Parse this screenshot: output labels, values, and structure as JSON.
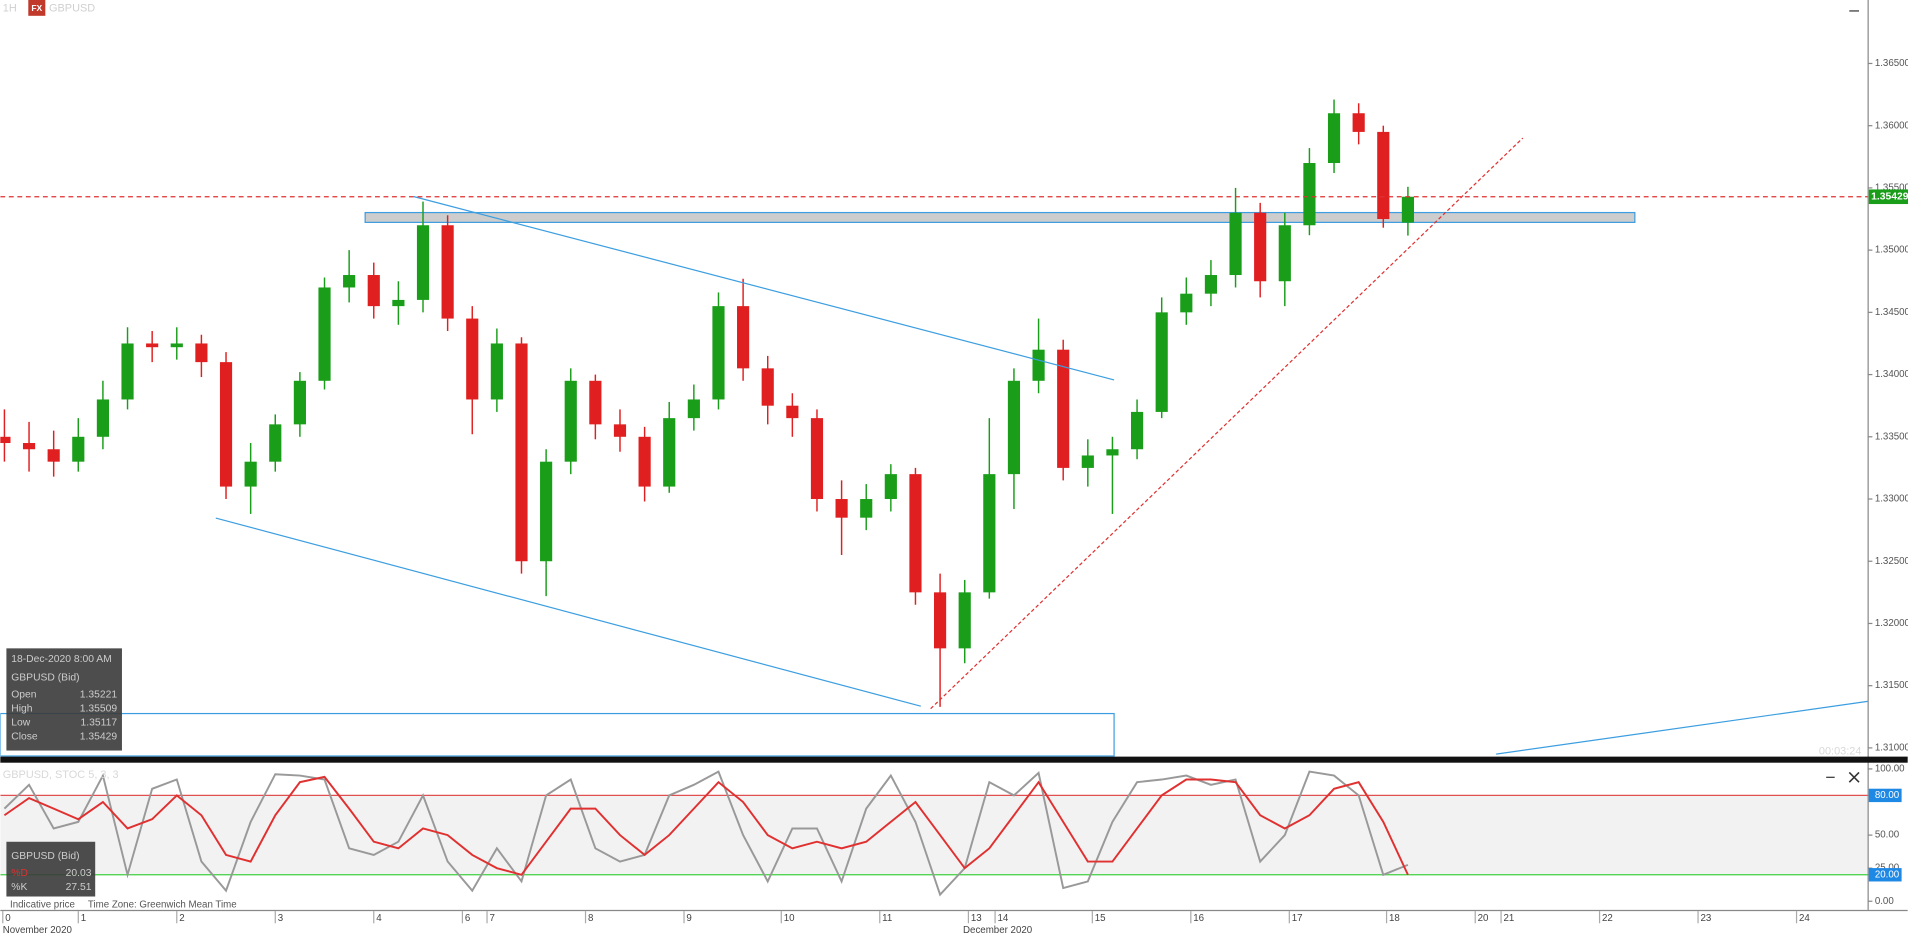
{
  "header": {
    "timeframe": "1H",
    "badge": "FX",
    "symbol": "GBPUSD"
  },
  "chart_data": [
    {
      "type": "candlestick",
      "x": [
        -18,
        -12,
        -6,
        0,
        6,
        12,
        18,
        24,
        30,
        36,
        42,
        48,
        54,
        60,
        66,
        72,
        78,
        84,
        90,
        96,
        102,
        108,
        114,
        120,
        126,
        132,
        138,
        144,
        150,
        156,
        162,
        168,
        174,
        180,
        186,
        192,
        198,
        204,
        210,
        216,
        222,
        228,
        234,
        240,
        246,
        252,
        258,
        264,
        270,
        276,
        282,
        288,
        294,
        300,
        306,
        312,
        318,
        324
      ],
      "open": [
        1.335,
        1.3345,
        1.334,
        1.333,
        1.335,
        1.338,
        1.3425,
        1.3422,
        1.3425,
        1.341,
        1.331,
        1.333,
        1.336,
        1.3395,
        1.347,
        1.348,
        1.3455,
        1.346,
        1.352,
        1.3445,
        1.338,
        1.3425,
        1.325,
        1.333,
        1.3395,
        1.336,
        1.335,
        1.331,
        1.3365,
        1.338,
        1.3455,
        1.3405,
        1.3375,
        1.3365,
        1.33,
        1.3285,
        1.33,
        1.332,
        1.3225,
        1.318,
        1.3225,
        1.332,
        1.3395,
        1.342,
        1.3325,
        1.3335,
        1.334,
        1.337,
        1.345,
        1.3465,
        1.348,
        1.353,
        1.3475,
        1.352,
        1.357,
        1.361,
        1.3595,
        1.35221
      ],
      "high": [
        1.3372,
        1.3362,
        1.3355,
        1.3365,
        1.3395,
        1.3438,
        1.3435,
        1.3438,
        1.3432,
        1.3418,
        1.3345,
        1.3368,
        1.3402,
        1.3478,
        1.35,
        1.349,
        1.3475,
        1.3539,
        1.3528,
        1.3455,
        1.3437,
        1.343,
        1.334,
        1.3405,
        1.34,
        1.3372,
        1.3358,
        1.3378,
        1.3392,
        1.3466,
        1.3477,
        1.3415,
        1.3385,
        1.3372,
        1.3315,
        1.3312,
        1.3328,
        1.3325,
        1.324,
        1.3235,
        1.3365,
        1.3405,
        1.3445,
        1.3428,
        1.3348,
        1.335,
        1.338,
        1.3462,
        1.3478,
        1.3492,
        1.355,
        1.3538,
        1.353,
        1.3582,
        1.3621,
        1.3618,
        1.36,
        1.35509
      ],
      "low": [
        1.333,
        1.3322,
        1.3318,
        1.3322,
        1.334,
        1.3372,
        1.341,
        1.3412,
        1.3398,
        1.33,
        1.3288,
        1.3322,
        1.335,
        1.3388,
        1.3458,
        1.3445,
        1.344,
        1.345,
        1.3435,
        1.3352,
        1.337,
        1.324,
        1.3222,
        1.332,
        1.3348,
        1.3338,
        1.3298,
        1.3305,
        1.3355,
        1.3372,
        1.3395,
        1.336,
        1.335,
        1.329,
        1.3255,
        1.3275,
        1.329,
        1.3215,
        1.3133,
        1.3168,
        1.322,
        1.3292,
        1.3385,
        1.3315,
        1.331,
        1.3288,
        1.3332,
        1.3365,
        1.344,
        1.3455,
        1.347,
        1.3462,
        1.3455,
        1.3512,
        1.3562,
        1.3585,
        1.3518,
        1.35117
      ],
      "close": [
        1.3345,
        1.334,
        1.333,
        1.335,
        1.338,
        1.3425,
        1.3422,
        1.3425,
        1.341,
        1.331,
        1.333,
        1.336,
        1.3395,
        1.347,
        1.348,
        1.3455,
        1.346,
        1.352,
        1.3445,
        1.338,
        1.3425,
        1.325,
        1.333,
        1.3395,
        1.336,
        1.335,
        1.331,
        1.3365,
        1.338,
        1.3455,
        1.3405,
        1.3375,
        1.3365,
        1.33,
        1.3285,
        1.33,
        1.332,
        1.3225,
        1.318,
        1.3225,
        1.332,
        1.3395,
        1.342,
        1.3325,
        1.3335,
        1.334,
        1.337,
        1.345,
        1.3465,
        1.348,
        1.353,
        1.3475,
        1.352,
        1.357,
        1.361,
        1.3595,
        1.3525,
        1.35429
      ],
      "up_color": "#1a9e1a",
      "down_color": "#e02020",
      "last_price_color": "#e03030",
      "xlim": [
        -19,
        436
      ],
      "ylim": [
        1.3093,
        1.3701
      ],
      "yticks": [
        {
          "value": 1.365,
          "label": "1.36500"
        },
        {
          "value": 1.36,
          "label": "1.36000"
        },
        {
          "value": 1.355,
          "label": "1.35500"
        },
        {
          "value": 1.35,
          "label": "1.35000"
        },
        {
          "value": 1.345,
          "label": "1.34500"
        },
        {
          "value": 1.34,
          "label": "1.34000"
        },
        {
          "value": 1.335,
          "label": "1.33500"
        },
        {
          "value": 1.33,
          "label": "1.33000"
        },
        {
          "value": 1.325,
          "label": "1.32500"
        },
        {
          "value": 1.32,
          "label": "1.32000"
        },
        {
          "value": 1.315,
          "label": "1.31500"
        },
        {
          "value": 1.31,
          "label": "1.31000"
        }
      ],
      "xticks": [
        {
          "value": -18.4,
          "label": "0"
        },
        {
          "value": 0,
          "label": "1"
        },
        {
          "value": 24,
          "label": "2"
        },
        {
          "value": 48,
          "label": "3"
        },
        {
          "value": 72,
          "label": "4"
        },
        {
          "value": 93.6,
          "label": "6"
        },
        {
          "value": 99.6,
          "label": "7"
        },
        {
          "value": 123.6,
          "label": "8"
        },
        {
          "value": 147.6,
          "label": "9"
        },
        {
          "value": 171.3,
          "label": "10"
        },
        {
          "value": 195.3,
          "label": "11"
        },
        {
          "value": 216.9,
          "label": "13"
        },
        {
          "value": 223.4,
          "label": "14"
        },
        {
          "value": 247.1,
          "label": "15"
        },
        {
          "value": 271.1,
          "label": "16"
        },
        {
          "value": 295.1,
          "label": "17"
        },
        {
          "value": 318.8,
          "label": "18"
        },
        {
          "value": 340.4,
          "label": "20"
        },
        {
          "value": 346.7,
          "label": "21"
        },
        {
          "value": 370.7,
          "label": "22"
        },
        {
          "value": 394.7,
          "label": "23"
        },
        {
          "value": 418.7,
          "label": "24"
        }
      ],
      "month_labels": [
        {
          "value": -19,
          "label": "November 2020"
        },
        {
          "value": 215,
          "label": "December 2020"
        }
      ],
      "lines": [
        {
          "x": [
            81.8,
            252.4
          ],
          "y": [
            1.3543,
            1.33957
          ],
          "color": "#3c9ee0",
          "dashed": false
        },
        {
          "x": [
            33.5,
            205.3
          ],
          "y": [
            1.32847,
            1.31335
          ],
          "color": "#3c9ee0",
          "dashed": false
        },
        {
          "x": [
            207.7,
            352
          ],
          "y": [
            1.31315,
            1.35901
          ],
          "color": "#e03030",
          "dashed": true
        },
        {
          "x": [
            345.5,
            436
          ],
          "y": [
            1.3095,
            1.31374
          ],
          "color": "#3c9ee0",
          "dashed": false
        }
      ],
      "zones": [
        {
          "x": [
            69.9,
            379.3
          ],
          "y": [
            1.35223,
            1.35302
          ],
          "fill": "#c8c8c8",
          "stroke": "#3c9ee0"
        },
        {
          "x": [
            -19,
            252.4
          ],
          "y": [
            1.30935,
            1.31276
          ],
          "fill": "none",
          "stroke": "#3c9ee0"
        }
      ],
      "timer": "00:03:24",
      "info": {
        "date": "18-Dec-2020 8:00 AM",
        "source": "GBPUSD (Bid)",
        "labels": [
          "Open",
          "High",
          "Low",
          "Close"
        ]
      }
    },
    {
      "type": "line",
      "title": "GBPUSD, STOC 5, 3, 3",
      "source": "GBPUSD (Bid)",
      "x": [
        -18,
        -12,
        -6,
        0,
        6,
        12,
        18,
        24,
        30,
        36,
        42,
        48,
        54,
        60,
        66,
        72,
        78,
        84,
        90,
        96,
        102,
        108,
        114,
        120,
        126,
        132,
        138,
        144,
        150,
        156,
        162,
        168,
        174,
        180,
        186,
        192,
        198,
        204,
        210,
        216,
        222,
        228,
        234,
        240,
        246,
        252,
        258,
        264,
        270,
        276,
        282,
        288,
        294,
        300,
        306,
        312,
        318,
        324
      ],
      "xlim": [
        -19,
        436
      ],
      "ylim": [
        -4.7,
        103.8
      ],
      "yticks": [
        {
          "value": 100,
          "label": "100.00"
        },
        {
          "value": 80,
          "label": "80.00"
        },
        {
          "value": 50,
          "label": "50.00"
        },
        {
          "value": 25,
          "label": "25.00"
        },
        {
          "value": 20,
          "label": "20.00"
        },
        {
          "value": 0,
          "label": "0.00"
        }
      ],
      "levels": [
        {
          "value": 80,
          "color": "#e05050"
        },
        {
          "value": 20,
          "color": "#40d040"
        }
      ],
      "series": [
        {
          "name": "%D",
          "color": "#e03030",
          "values": [
            65,
            78,
            70,
            62,
            75,
            55,
            62,
            80,
            65,
            35,
            30,
            65,
            90,
            94,
            70,
            45,
            40,
            55,
            50,
            35,
            25,
            20,
            45,
            70,
            70,
            50,
            35,
            50,
            70,
            90,
            75,
            50,
            40,
            45,
            40,
            45,
            60,
            75,
            50,
            25,
            40,
            65,
            90,
            60,
            30,
            30,
            55,
            80,
            92,
            92,
            90,
            65,
            55,
            65,
            85,
            90,
            60,
            20.03
          ]
        },
        {
          "name": "%K",
          "color": "#999999",
          "values": [
            70,
            88,
            55,
            60,
            95,
            20,
            85,
            92,
            30,
            8,
            60,
            96,
            95,
            92,
            40,
            35,
            45,
            80,
            30,
            8,
            40,
            15,
            80,
            92,
            40,
            30,
            35,
            80,
            88,
            98,
            50,
            15,
            55,
            55,
            15,
            70,
            95,
            60,
            5,
            25,
            90,
            80,
            97,
            10,
            15,
            60,
            90,
            92,
            95,
            88,
            92,
            30,
            50,
            98,
            95,
            80,
            20,
            27.51
          ]
        }
      ]
    }
  ],
  "footer": {
    "note": "Indicative price",
    "timezone": "Time Zone: Greenwich Mean Time"
  }
}
